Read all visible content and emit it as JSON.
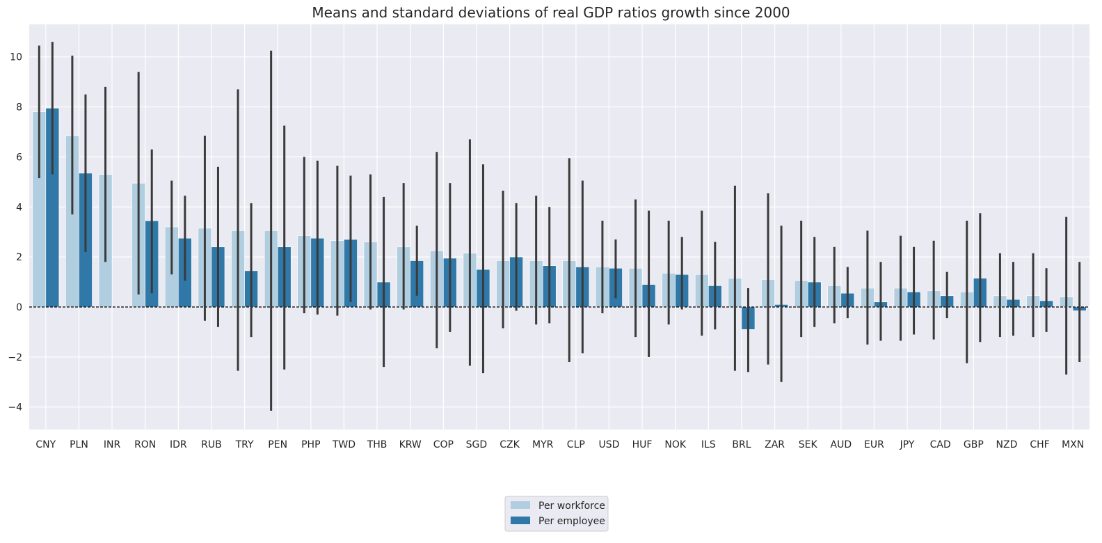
{
  "chart_data": {
    "type": "bar",
    "title": "Means and standard deviations of real GDP ratios growth since 2000",
    "xlabel": "",
    "ylabel": "",
    "ylim": [
      -4.9,
      11.3
    ],
    "yticks": [
      -4,
      -2,
      0,
      2,
      4,
      6,
      8,
      10
    ],
    "ytick_labels": [
      "−4",
      "−2",
      "0",
      "2",
      "4",
      "6",
      "8",
      "10"
    ],
    "grid": true,
    "legend_position": "bottom-center",
    "colors": {
      "background": "#eaeaf2",
      "grid": "#ffffff",
      "error_bar": "#3a3a3a",
      "zero_line": "#000000"
    },
    "categories": [
      "CNY",
      "PLN",
      "INR",
      "RON",
      "IDR",
      "RUB",
      "TRY",
      "PEN",
      "PHP",
      "TWD",
      "THB",
      "KRW",
      "COP",
      "SGD",
      "CZK",
      "MYR",
      "CLP",
      "USD",
      "HUF",
      "NOK",
      "ILS",
      "BRL",
      "ZAR",
      "SEK",
      "AUD",
      "EUR",
      "JPY",
      "CAD",
      "GBP",
      "NZD",
      "CHF",
      "MXN"
    ],
    "series": [
      {
        "name": "Per workforce",
        "color": "#b0cee0",
        "values": [
          7.8,
          6.85,
          5.3,
          4.95,
          3.2,
          3.15,
          3.05,
          3.05,
          2.85,
          2.65,
          2.6,
          2.4,
          2.25,
          2.15,
          1.85,
          1.85,
          1.85,
          1.6,
          1.55,
          1.35,
          1.3,
          1.15,
          1.1,
          1.05,
          0.85,
          0.75,
          0.75,
          0.65,
          0.6,
          0.45,
          0.45,
          0.4
        ],
        "err_low": [
          5.15,
          3.7,
          1.8,
          0.5,
          1.3,
          -0.55,
          -2.55,
          -4.15,
          -0.25,
          -0.35,
          -0.1,
          -0.1,
          -1.65,
          -2.35,
          -0.85,
          -0.7,
          -2.2,
          -0.25,
          -1.2,
          -0.7,
          -1.15,
          -2.55,
          -2.3,
          -1.2,
          -0.65,
          -1.5,
          -1.35,
          -1.3,
          -2.25,
          -1.2,
          -1.2,
          -2.7
        ],
        "err_high": [
          10.45,
          10.05,
          8.8,
          9.4,
          5.05,
          6.85,
          8.7,
          10.25,
          6.0,
          5.65,
          5.3,
          4.95,
          6.2,
          6.7,
          4.65,
          4.45,
          5.95,
          3.45,
          4.3,
          3.45,
          3.85,
          4.85,
          4.55,
          3.45,
          2.4,
          3.05,
          2.85,
          2.65,
          3.45,
          2.15,
          2.15,
          3.6
        ]
      },
      {
        "name": "Per employee",
        "color": "#3078a8",
        "values": [
          7.95,
          5.35,
          null,
          3.45,
          2.75,
          2.4,
          1.45,
          2.4,
          2.75,
          2.7,
          1.0,
          1.85,
          1.95,
          1.5,
          2.0,
          1.65,
          1.6,
          1.55,
          0.9,
          1.3,
          0.85,
          -0.9,
          0.1,
          1.0,
          0.55,
          0.2,
          0.6,
          0.45,
          1.15,
          0.3,
          0.25,
          -0.15
        ],
        "err_low": [
          5.3,
          2.2,
          null,
          0.55,
          1.05,
          -0.8,
          -1.2,
          -2.5,
          -0.3,
          0.2,
          -2.4,
          0.45,
          -1.0,
          -2.65,
          -0.15,
          -0.65,
          -1.85,
          0.35,
          -2.0,
          -0.1,
          -0.9,
          -2.6,
          -3.0,
          -0.8,
          -0.45,
          -1.35,
          -1.1,
          -0.45,
          -1.4,
          -1.15,
          -1.0,
          -2.2
        ],
        "err_high": [
          10.6,
          8.5,
          null,
          6.3,
          4.45,
          5.6,
          4.15,
          7.25,
          5.85,
          5.25,
          4.4,
          3.25,
          4.95,
          5.7,
          4.15,
          4.0,
          5.05,
          2.7,
          3.85,
          2.8,
          2.6,
          0.75,
          3.25,
          2.8,
          1.6,
          1.8,
          2.4,
          1.4,
          3.75,
          1.8,
          1.55,
          1.8
        ]
      }
    ]
  }
}
